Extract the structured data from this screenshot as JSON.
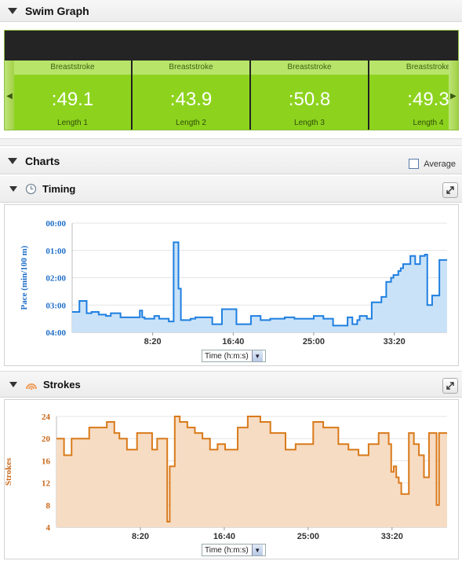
{
  "swim_graph": {
    "title": "Swim Graph",
    "laps": [
      {
        "stroke": "Breaststroke",
        "time": ":49.1",
        "length": "Length 1"
      },
      {
        "stroke": "Breaststroke",
        "time": ":43.9",
        "length": "Length 2"
      },
      {
        "stroke": "Breaststroke",
        "time": ":50.8",
        "length": "Length 3"
      },
      {
        "stroke": "Breaststroke",
        "time": ":49.3",
        "length": "Length 4"
      }
    ]
  },
  "charts_section": {
    "title": "Charts",
    "average_label": "Average",
    "average_checked": false
  },
  "timing": {
    "title": "Timing",
    "icon": "clock-icon",
    "time_select": "Time (h:m:s)"
  },
  "strokes": {
    "title": "Strokes",
    "icon": "strokes-icon",
    "time_select": "Time (h:m:s)"
  },
  "colors": {
    "pace_line": "#1f7fe0",
    "pace_fill": "#c9e2f8",
    "strokes_line": "#d97a1a",
    "strokes_fill": "#f7dcc4",
    "lap_green": "#8dd31e"
  },
  "chart_data": [
    {
      "type": "area",
      "ylabel": "Pace (min/100 m)",
      "xlabel": "",
      "x_ticks": [
        "8:20",
        "16:40",
        "25:00",
        "33:20"
      ],
      "x_tick_minutes": [
        8.333,
        16.667,
        25,
        33.333
      ],
      "xlim": [
        0,
        38.8
      ],
      "y_ticks": [
        "00:00",
        "01:00",
        "02:00",
        "03:00",
        "04:00"
      ],
      "y_tick_minutes": [
        0,
        1,
        2,
        3,
        4
      ],
      "ylim": [
        0,
        4
      ],
      "y_inverted": true,
      "step": true,
      "x": [
        0.0,
        0.75,
        1.5,
        2.0,
        2.75,
        3.5,
        4.0,
        5.0,
        6.5,
        7.0,
        7.25,
        7.5,
        8.5,
        9.0,
        10.0,
        10.5,
        11.0,
        11.25,
        12.25,
        12.75,
        13.25,
        14.5,
        15.5,
        17.0,
        18.5,
        19.5,
        20.5,
        21.0,
        22.0,
        23.0,
        23.5,
        25.0,
        26.0,
        27.0,
        28.5,
        29.0,
        29.5,
        29.75,
        30.5,
        31.0,
        32.0,
        32.5,
        33.0,
        33.25,
        33.5,
        33.75,
        34.0,
        34.25,
        35.0,
        35.5,
        36.0,
        36.5,
        36.75,
        37.25,
        38.0
      ],
      "y": [
        3.25,
        2.85,
        3.3,
        3.25,
        3.35,
        3.4,
        3.3,
        3.45,
        3.45,
        3.2,
        3.45,
        3.5,
        3.4,
        3.5,
        3.6,
        0.7,
        2.4,
        3.55,
        3.5,
        3.45,
        3.45,
        3.7,
        3.15,
        3.7,
        3.4,
        3.55,
        3.5,
        3.5,
        3.45,
        3.5,
        3.5,
        3.4,
        3.5,
        3.75,
        3.45,
        3.7,
        3.55,
        3.4,
        3.5,
        2.9,
        2.7,
        2.15,
        2.0,
        1.9,
        1.9,
        1.75,
        1.65,
        1.5,
        1.2,
        1.5,
        1.2,
        1.15,
        3.0,
        2.65,
        1.35
      ]
    },
    {
      "type": "area",
      "ylabel": "Strokes",
      "xlabel": "",
      "x_ticks": [
        "8:20",
        "16:40",
        "25:00",
        "33:20"
      ],
      "x_tick_minutes": [
        8.333,
        16.667,
        25,
        33.333
      ],
      "xlim": [
        0,
        38.8
      ],
      "y_ticks": [
        "4",
        "8",
        "12",
        "16",
        "20",
        "24"
      ],
      "y_tick_values": [
        4,
        8,
        12,
        16,
        20,
        24
      ],
      "ylim": [
        4,
        24
      ],
      "step": true,
      "x": [
        0.0,
        0.75,
        1.5,
        3.25,
        5.0,
        5.75,
        6.25,
        7.0,
        8.0,
        9.5,
        10.0,
        11.0,
        11.25,
        11.75,
        12.25,
        13.0,
        13.75,
        14.5,
        15.25,
        16.0,
        16.75,
        18.0,
        19.0,
        20.25,
        21.25,
        22.75,
        23.75,
        25.5,
        26.5,
        28.0,
        29.0,
        30.0,
        31.0,
        32.0,
        33.0,
        33.25,
        33.5,
        33.75,
        34.0,
        34.25,
        35.0,
        35.5,
        36.0,
        36.5,
        37.0,
        37.75,
        38.0
      ],
      "y": [
        20,
        17,
        20,
        22,
        23,
        21,
        20,
        18,
        21,
        18,
        20,
        5,
        15,
        24,
        23,
        22,
        21,
        20,
        18,
        19,
        18,
        22,
        24,
        23,
        21,
        18,
        19,
        23,
        22,
        19,
        18,
        17,
        19,
        21,
        19,
        14,
        15,
        13,
        12,
        10,
        21,
        19,
        17,
        13,
        21,
        8,
        21
      ]
    }
  ]
}
